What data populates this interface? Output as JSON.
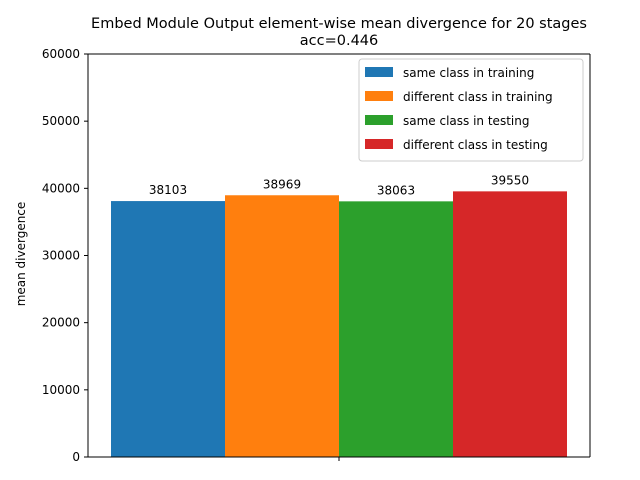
{
  "chart_data": {
    "type": "bar",
    "title_line1": "Embed Module Output element-wise mean divergence for 20 stages",
    "title_line2": "acc=0.446",
    "ylabel": "mean divergence",
    "xlabel": "",
    "ylim": [
      0,
      60000
    ],
    "yticks": [
      0,
      10000,
      20000,
      30000,
      40000,
      50000,
      60000
    ],
    "legend_position": "top-right",
    "grid": false,
    "series": [
      {
        "name": "same class in training",
        "value": 38103,
        "label": "38103",
        "color": "#1f77b4"
      },
      {
        "name": "different class in training",
        "value": 38969,
        "label": "38969",
        "color": "#ff7f0e"
      },
      {
        "name": "same class in testing",
        "value": 38063,
        "label": "38063",
        "color": "#2ca02c"
      },
      {
        "name": "different class in testing",
        "value": 39550,
        "label": "39550",
        "color": "#d62728"
      }
    ]
  }
}
